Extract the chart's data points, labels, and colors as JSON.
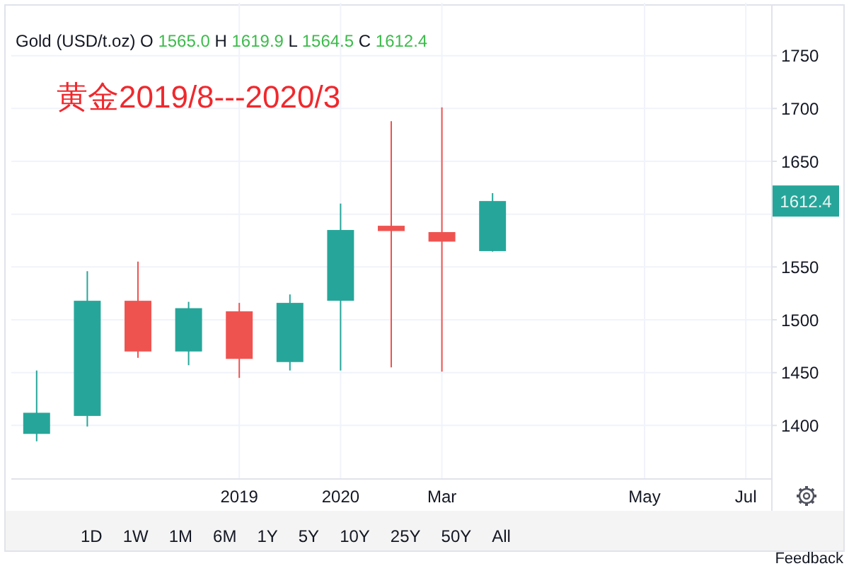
{
  "chart_data": {
    "type": "candlestick",
    "title": "黄金2019/8---2020/3",
    "categories": [
      null,
      null,
      null,
      null,
      "2019",
      null,
      "2020",
      null,
      "Mar",
      null,
      null,
      null,
      "May",
      null,
      "Jul"
    ],
    "ohlc": [
      [
        1392,
        1452,
        1385,
        1412
      ],
      [
        1409,
        1546,
        1399,
        1518
      ],
      [
        1518,
        1555,
        1464,
        1470
      ],
      [
        1470,
        1517,
        1457,
        1511
      ],
      [
        1508,
        1516,
        1445,
        1463
      ],
      [
        1460,
        1524,
        1452,
        1516
      ],
      [
        1518,
        1610,
        1452,
        1585
      ],
      [
        1589,
        1688,
        1455,
        1584
      ],
      [
        1583,
        1701,
        1451,
        1574
      ],
      [
        1565.0,
        1619.9,
        1564.5,
        1612.4
      ],
      null,
      null,
      null,
      null,
      null
    ],
    "colors": [
      "#26a69a",
      "#26a69a",
      "#ef5350",
      "#26a69a",
      "#ef5350",
      "#26a69a",
      "#26a69a",
      "#ef5350",
      "#ef5350",
      "#26a69a",
      null,
      null,
      null,
      null,
      null
    ],
    "ylim": [
      1350,
      1800
    ],
    "yticks": [
      1400,
      1450,
      1500,
      1550,
      {
        "value": 1600,
        "label": null
      },
      1650,
      1700,
      1750
    ],
    "grid": true,
    "annotations": [
      "Gold (USD/t.oz) O 1565.0 H 1619.9 L 1564.5 C 1612.4",
      "1612.4",
      "1D",
      "1W",
      "1M",
      "6M",
      "1Y",
      "5Y",
      "10Y",
      "25Y",
      "50Y",
      "All",
      "Feedback"
    ]
  }
}
